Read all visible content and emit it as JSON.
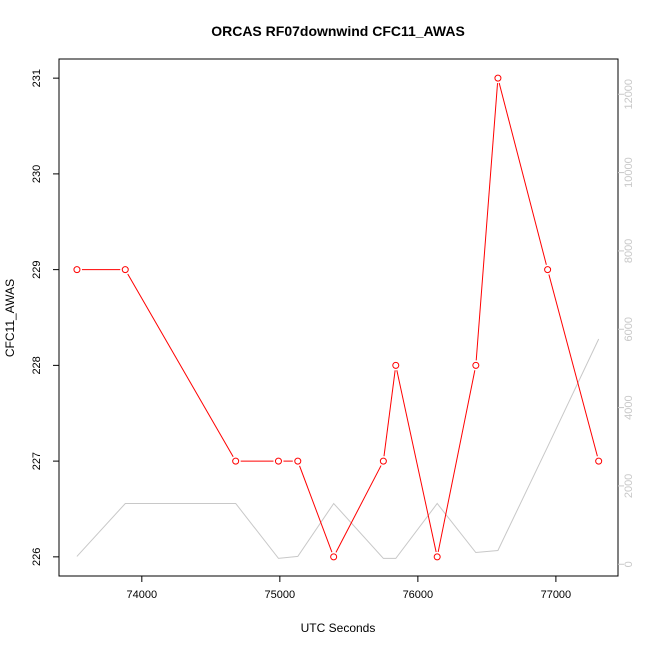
{
  "chart_data": {
    "type": "line",
    "title": "ORCAS RF07downwind CFC11_AWAS",
    "xlabel": "UTC Seconds",
    "ylabel": "CFC11_AWAS",
    "xlim": [
      73400,
      77450
    ],
    "ylim": [
      225.8,
      231.2
    ],
    "y2lim": [
      -300,
      12900
    ],
    "x_ticks": [
      74000,
      75000,
      76000,
      77000
    ],
    "y_ticks": [
      226,
      227,
      228,
      229,
      230,
      231
    ],
    "y2_ticks": [
      0,
      2000,
      4000,
      6000,
      8000,
      10000,
      12000
    ],
    "grid": false,
    "series": [
      {
        "color": "#ff0000",
        "axis": "left",
        "markers": true,
        "x": [
          73530,
          73880,
          74680,
          74990,
          75130,
          75390,
          75750,
          75840,
          76140,
          76420,
          76580,
          76940,
          77310
        ],
        "y": [
          229,
          229,
          227,
          227,
          227,
          226,
          227,
          228,
          226,
          228,
          231,
          229,
          227
        ]
      },
      {
        "color": "#c8c8c8",
        "axis": "right",
        "markers": false,
        "x": [
          73530,
          73880,
          74680,
          74990,
          75130,
          75390,
          75750,
          75840,
          76140,
          76420,
          76580,
          76940,
          77310
        ],
        "y": [
          200,
          1550,
          1550,
          150,
          200,
          1550,
          150,
          150,
          1550,
          300,
          350,
          3000,
          5750
        ]
      }
    ]
  }
}
